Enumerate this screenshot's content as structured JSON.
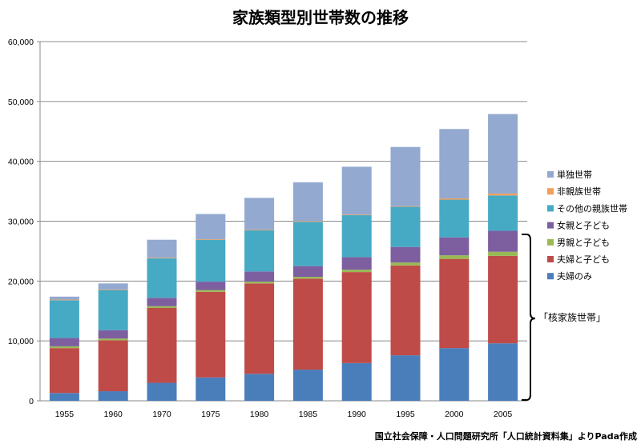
{
  "chart_data": {
    "type": "bar",
    "stacked": true,
    "title": "家族類型別世帯数の推移",
    "categories": [
      "1955",
      "1960",
      "1970",
      "1975",
      "1980",
      "1985",
      "1990",
      "1995",
      "2000",
      "2005"
    ],
    "ylim": [
      0,
      60000
    ],
    "yticks": [
      "0",
      "10,000",
      "20,000",
      "30,000",
      "40,000",
      "50,000",
      "60,000"
    ],
    "ytick_values": [
      0,
      10000,
      20000,
      30000,
      40000,
      50000,
      60000
    ],
    "grid": true,
    "legend_position": "right",
    "series": [
      {
        "name": "夫婦のみ",
        "color": "#4a7ebb",
        "values": [
          1300,
          1600,
          3000,
          3900,
          4500,
          5200,
          6300,
          7600,
          8800,
          9600
        ]
      },
      {
        "name": "夫婦と子ども",
        "color": "#be4b48",
        "values": [
          7500,
          8500,
          12500,
          14300,
          15100,
          15200,
          15200,
          15000,
          14900,
          14600
        ]
      },
      {
        "name": "男親と子ども",
        "color": "#98b954",
        "values": [
          300,
          300,
          300,
          300,
          300,
          300,
          400,
          500,
          600,
          700
        ]
      },
      {
        "name": "女親と子ども",
        "color": "#7d5fa0",
        "values": [
          1400,
          1400,
          1400,
          1400,
          1700,
          1800,
          2100,
          2600,
          3000,
          3500
        ]
      },
      {
        "name": "その他の親族世帯",
        "color": "#46aac5",
        "values": [
          6300,
          6700,
          6600,
          7000,
          6900,
          7400,
          7000,
          6700,
          6300,
          5900
        ]
      },
      {
        "name": "非親族世帯",
        "color": "#f59d56",
        "values": [
          100,
          100,
          100,
          100,
          100,
          100,
          100,
          100,
          200,
          300
        ]
      },
      {
        "name": "単独世帯",
        "color": "#93a9d0",
        "values": [
          500,
          1000,
          3000,
          4200,
          5300,
          6500,
          8000,
          9900,
          11600,
          13300
        ]
      }
    ],
    "annotation": "「核家族世帯」"
  },
  "footer": "国立社会保障・人口問題研究所「人口統計資料集」よりPada作成"
}
